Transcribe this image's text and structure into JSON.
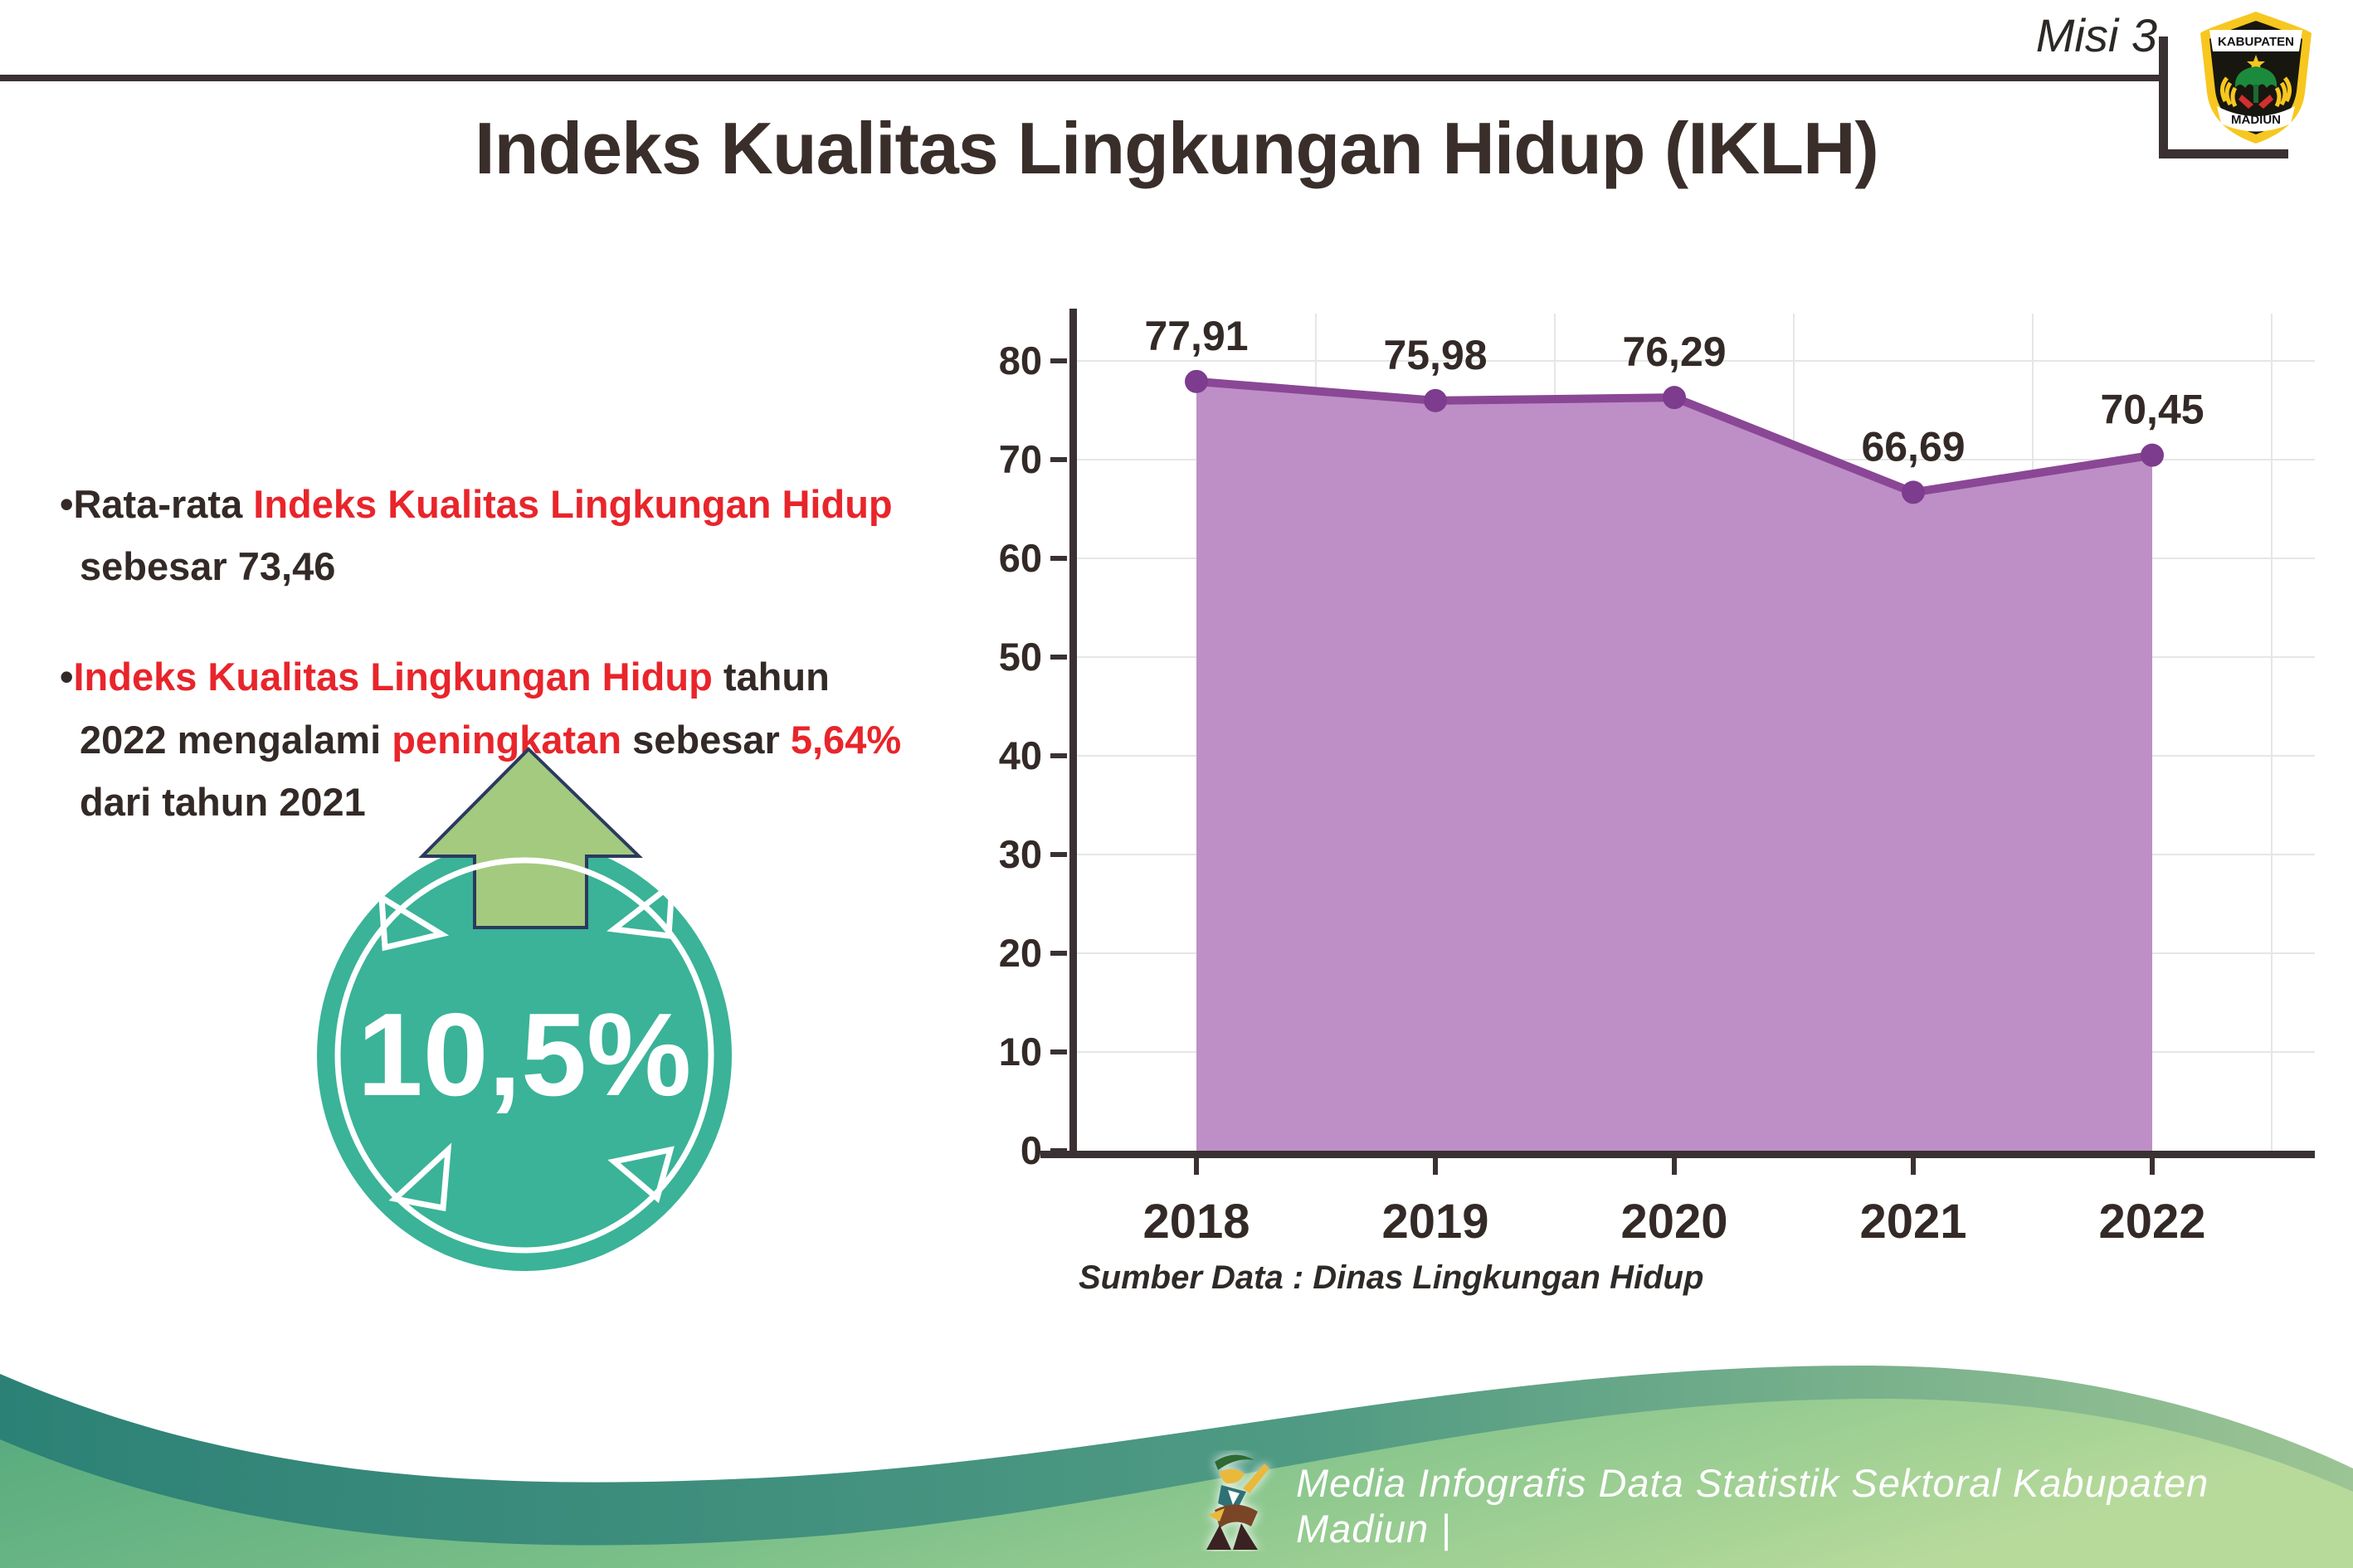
{
  "header": {
    "misi_label": "Misi 3"
  },
  "logo": {
    "top_text": "KABUPATEN",
    "bottom_text": "MADIUN"
  },
  "title": "Indeks Kualitas Lingkungan Hidup (IKLH)",
  "bullets": [
    {
      "marker": "•",
      "segments": [
        {
          "t": "Rata-rata ",
          "c": "dark"
        },
        {
          "t": "Indeks Kualitas Lingkungan Hidup",
          "c": "red"
        },
        {
          "t": " sebesar 73,46",
          "c": "dark"
        }
      ]
    },
    {
      "marker": "•",
      "segments": [
        {
          "t": "Indeks Kualitas Lingkungan Hidup",
          "c": "red"
        },
        {
          "t": " tahun 2022 mengalami ",
          "c": "dark"
        },
        {
          "t": "peningkatan",
          "c": "red"
        },
        {
          "t": " sebesar ",
          "c": "dark"
        },
        {
          "t": "5,64%",
          "c": "red"
        },
        {
          "t": " dari tahun 2021",
          "c": "dark"
        }
      ]
    }
  ],
  "badge": {
    "value": "10,5%"
  },
  "chart_data": {
    "type": "area",
    "categories": [
      "2018",
      "2019",
      "2020",
      "2021",
      "2022"
    ],
    "series": [
      {
        "name": "IKLH",
        "values": [
          77.91,
          75.98,
          76.29,
          66.69,
          70.45
        ]
      }
    ],
    "data_labels": [
      "77,91",
      "75,98",
      "76,29",
      "66,69",
      "70,45"
    ],
    "ylim": [
      0,
      85
    ],
    "ytick_step": 10,
    "grid": true,
    "legend": false,
    "source_note": "Sumber Data : Dinas Lingkungan Hidup"
  },
  "footer": {
    "credit": "Media Infografis Data Statistik Sektoral Kabupaten Madiun |"
  },
  "colors": {
    "accent_red": "#e8252b",
    "text_dark": "#332a27",
    "axis_dark": "#3a3132",
    "gridline": "#e6e6e6",
    "chart_line": "#8a4795",
    "chart_fill": "#bd8fc6",
    "chart_marker": "#7d3c8e",
    "badge_teal": "#3ab398",
    "arrow_green": "#a3ca7f",
    "arrow_outline": "#2b3a5e",
    "wave_teal_dark": "#2c8176",
    "wave_teal_light": "#9cc494",
    "wave_green_dark": "#55a97e",
    "wave_green_light": "#b7da9b"
  }
}
